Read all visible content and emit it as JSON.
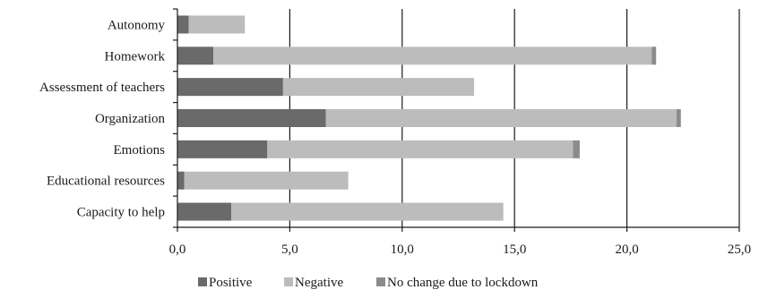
{
  "chart_data": {
    "type": "bar",
    "orientation": "horizontal",
    "stacked": true,
    "categories": [
      "Autonomy",
      "Homework",
      "Assessment of teachers",
      "Organization",
      "Emotions",
      "Educational resources",
      "Capacity to help"
    ],
    "series": [
      {
        "name": "Positive",
        "color": "#6a6a6a",
        "values": [
          0.5,
          1.6,
          4.7,
          6.6,
          4.0,
          0.3,
          2.4
        ]
      },
      {
        "name": "Negative",
        "color": "#bcbcbc",
        "values": [
          2.5,
          19.5,
          8.5,
          15.6,
          13.6,
          7.3,
          12.1
        ]
      },
      {
        "name": "No change due to lockdown",
        "color": "#8c8c8c",
        "values": [
          0.0,
          0.2,
          0.0,
          0.2,
          0.3,
          0.0,
          0.0
        ]
      }
    ],
    "xlim": [
      0,
      25
    ],
    "x_ticks": [
      "0,0",
      "5,0",
      "10,0",
      "15,0",
      "20,0",
      "25,0"
    ],
    "x_tick_values": [
      0,
      5,
      10,
      15,
      20,
      25
    ],
    "grid": "vertical",
    "legend": "bottom"
  }
}
